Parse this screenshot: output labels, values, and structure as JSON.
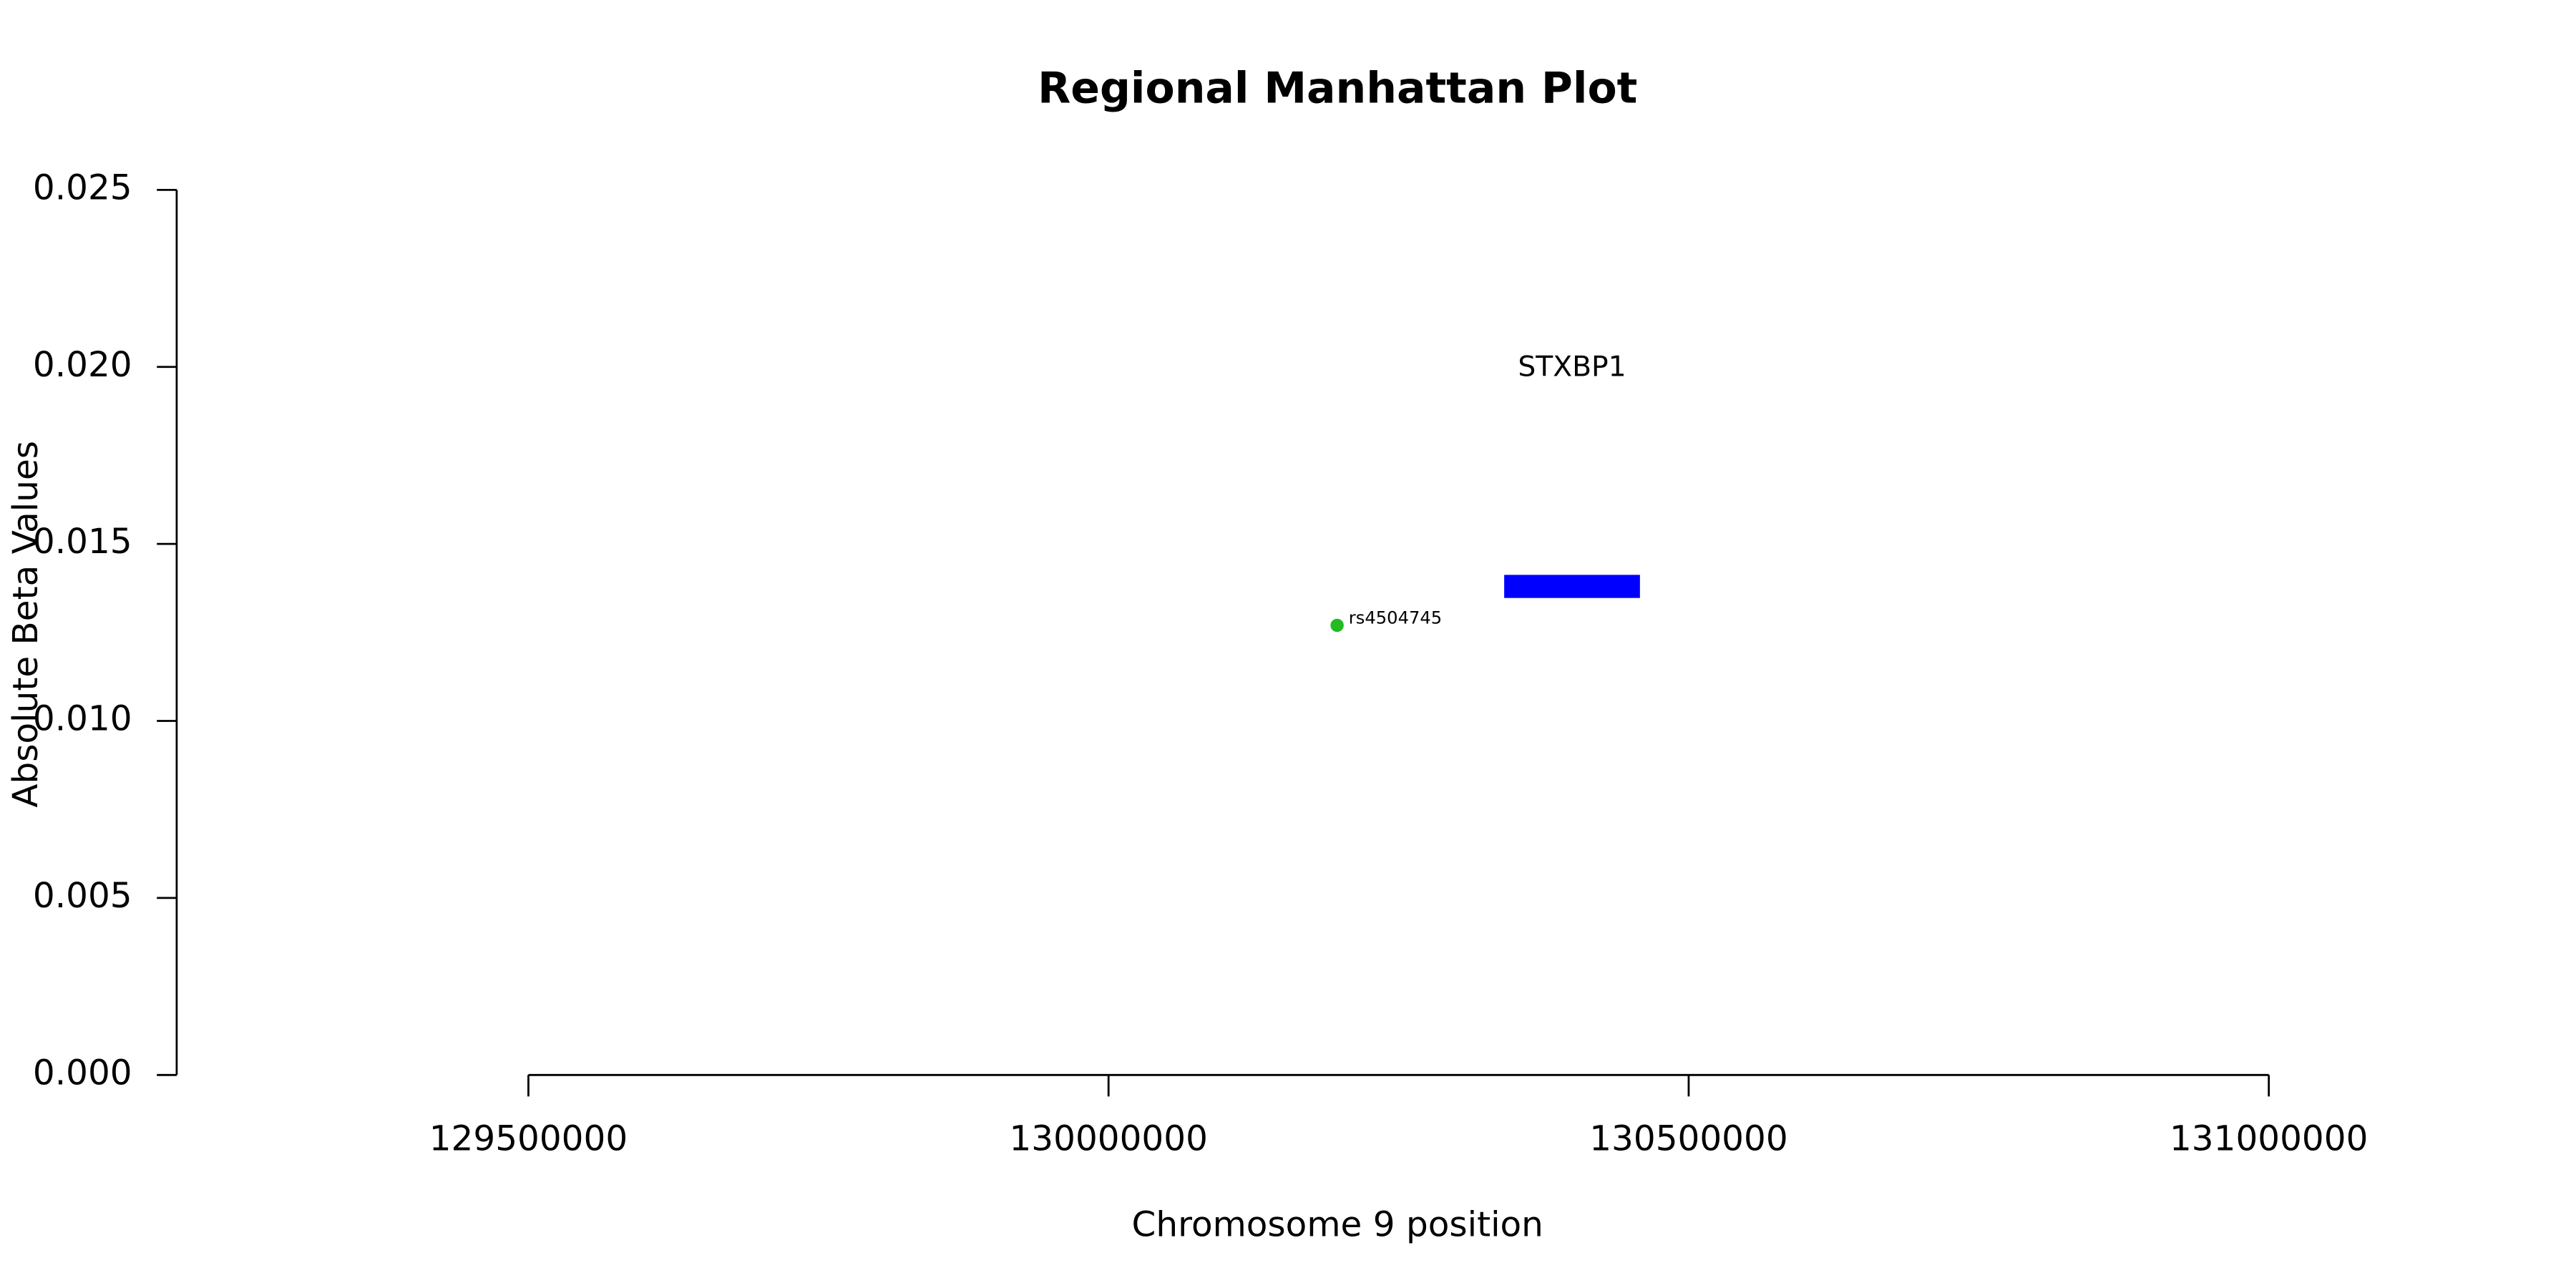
{
  "chart_data": {
    "type": "scatter",
    "title": "Regional Manhattan Plot",
    "x_label": "Chromosome 9 position",
    "y_label": "Absolute Beta Values",
    "x": [
      130197000
    ],
    "values": [
      0.0127
    ],
    "point_labels": [
      "rs4504745"
    ],
    "color": "#22bb22",
    "genes": [
      {
        "label": "STXBP1",
        "start": 130341000,
        "end": 130458000,
        "y": 0.0138,
        "color": "#0000ff"
      }
    ],
    "xlim": [
      129200000,
      131200000
    ],
    "xticks": [
      129500000,
      130000000,
      130500000,
      131000000
    ],
    "ylim": [
      0,
      0.025
    ],
    "yticks": [
      {
        "value": 0,
        "label": "0.000"
      },
      0.005,
      {
        "value": 0.01,
        "label": "0.010"
      },
      0.015,
      {
        "value": 0.02,
        "label": "0.020"
      },
      0.025
    ]
  }
}
